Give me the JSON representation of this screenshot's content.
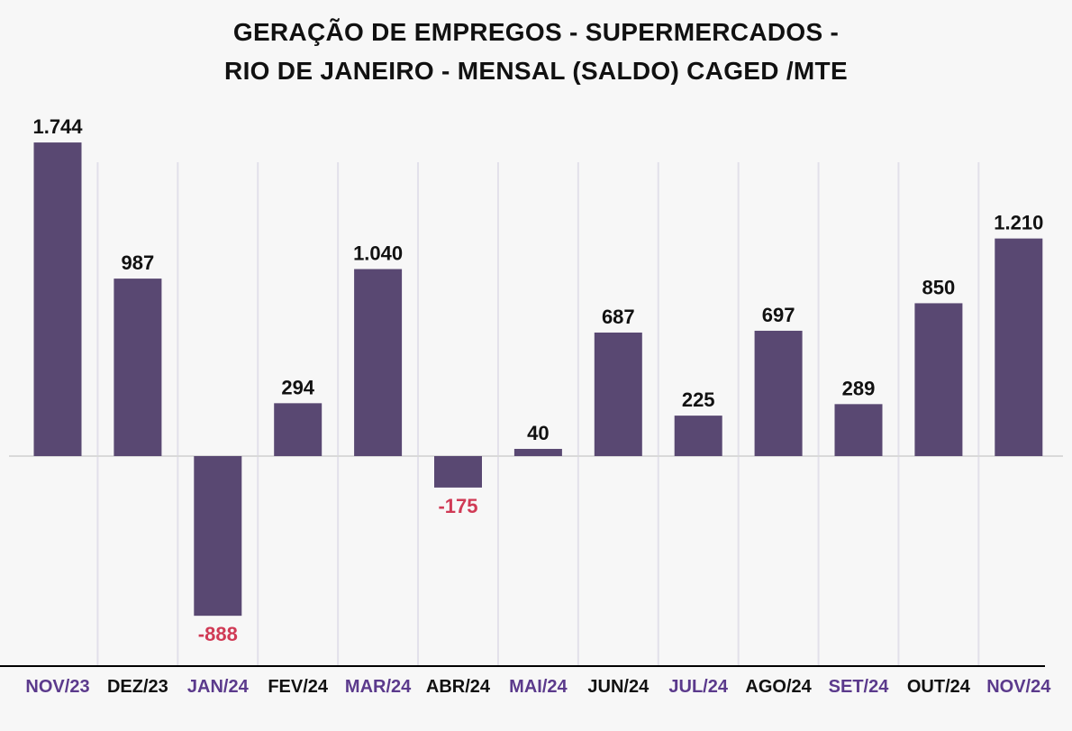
{
  "chart_data": {
    "type": "bar",
    "title": [
      "GERAÇÃO DE EMPREGOS - SUPERMERCADOS -",
      "RIO DE JANEIRO - MENSAL (SALDO) CAGED /MTE"
    ],
    "xlabel": "",
    "ylabel": "",
    "categories": [
      "NOV/23",
      "DEZ/23",
      "JAN/24",
      "FEV/24",
      "MAR/24",
      "ABR/24",
      "MAI/24",
      "JUN/24",
      "JUL/24",
      "AGO/24",
      "SET/24",
      "OUT/24",
      "NOV/24"
    ],
    "values": [
      1744,
      987,
      -888,
      294,
      1040,
      -175,
      40,
      687,
      225,
      697,
      289,
      850,
      1210
    ],
    "value_labels": [
      "1.744",
      "987",
      "-888",
      "294",
      "1.040",
      "-175",
      "40",
      "687",
      "225",
      "697",
      "289",
      "850",
      "1.210"
    ],
    "grid": true,
    "colors": {
      "bar": "#594872",
      "positive_label": "#111111",
      "negative_label": "#d03a55",
      "tick_accent": "#5b3a8c",
      "tick_default": "#111111",
      "gridline": "#e2e0ea",
      "zero_line": "#d9d9d9",
      "axis_line": "#000000"
    }
  }
}
